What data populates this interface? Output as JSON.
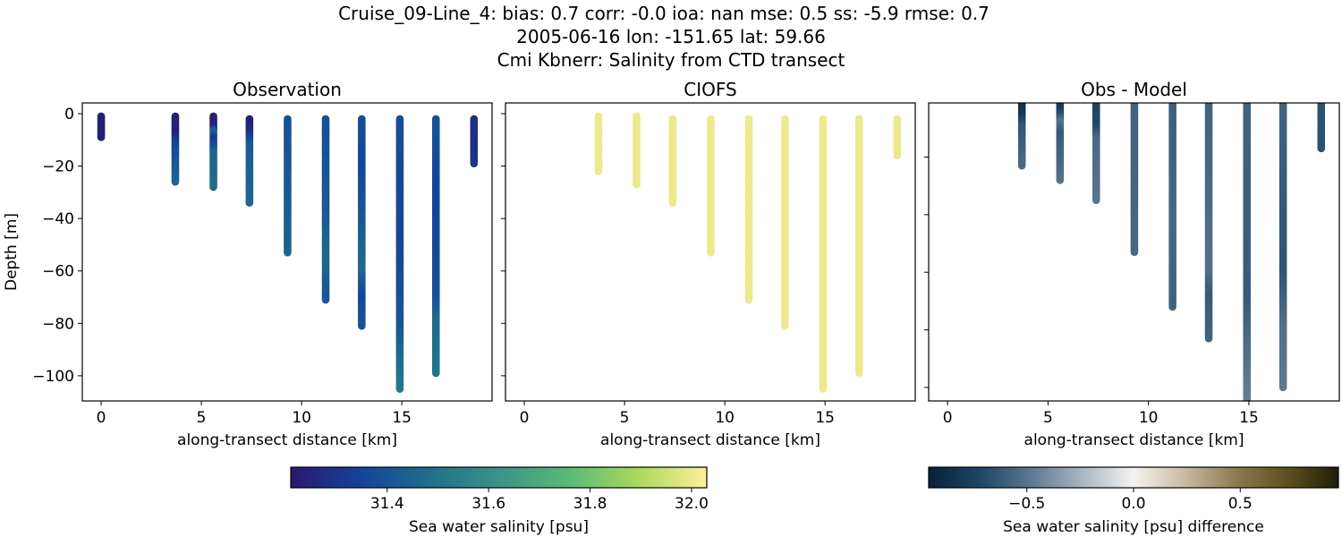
{
  "title_lines": [
    "Cruise_09-Line_4: bias: 0.7  corr: -0.0  ioa: nan  mse: 0.5  ss: -5.9  rmse: 0.7",
    "2005-06-16 lon: -151.65 lat: 59.66",
    "Cmi Kbnerr: Salinity from CTD transect"
  ],
  "chart_data": [
    {
      "type": "scatter",
      "title": "Observation",
      "xlabel": "along-transect distance [km]",
      "ylabel": "Depth [m]",
      "xlim": [
        -0.94,
        19.5
      ],
      "ylim": [
        -109.6,
        4.1
      ],
      "xticks": [
        0,
        5,
        10,
        15
      ],
      "yticks": [
        0,
        -20,
        -40,
        -60,
        -80,
        -100
      ],
      "colorbar": "salinity",
      "profiles": [
        {
          "x": 0,
          "points": [
            [
              -1,
              31.24
            ],
            [
              -9,
              31.24
            ]
          ]
        },
        {
          "x": 3.7,
          "points": [
            [
              -1,
              31.24
            ],
            [
              -8,
              31.24
            ],
            [
              -10,
              31.3
            ],
            [
              -15,
              31.38
            ],
            [
              -26,
              31.45
            ]
          ]
        },
        {
          "x": 5.6,
          "points": [
            [
              -1,
              31.24
            ],
            [
              -5,
              31.24
            ],
            [
              -7,
              31.45
            ],
            [
              -10,
              31.3
            ],
            [
              -15,
              31.45
            ],
            [
              -28,
              31.47
            ]
          ]
        },
        {
          "x": 7.4,
          "points": [
            [
              -2,
              31.24
            ],
            [
              -5,
              31.24
            ],
            [
              -8,
              31.3
            ],
            [
              -12,
              31.42
            ],
            [
              -34,
              31.46
            ]
          ]
        },
        {
          "x": 9.3,
          "points": [
            [
              -2,
              31.38
            ],
            [
              -30,
              31.42
            ],
            [
              -53,
              31.45
            ]
          ]
        },
        {
          "x": 11.2,
          "points": [
            [
              -2,
              31.38
            ],
            [
              -40,
              31.42
            ],
            [
              -55,
              31.47
            ],
            [
              -71,
              31.4
            ]
          ]
        },
        {
          "x": 13.0,
          "points": [
            [
              -2,
              31.38
            ],
            [
              -20,
              31.35
            ],
            [
              -60,
              31.47
            ],
            [
              -70,
              31.35
            ],
            [
              -81,
              31.4
            ]
          ]
        },
        {
          "x": 14.9,
          "points": [
            [
              -2,
              31.38
            ],
            [
              -50,
              31.36
            ],
            [
              -80,
              31.4
            ],
            [
              -95,
              31.48
            ],
            [
              -105,
              31.52
            ]
          ]
        },
        {
          "x": 16.7,
          "points": [
            [
              -2,
              31.4
            ],
            [
              -30,
              31.35
            ],
            [
              -70,
              31.38
            ],
            [
              -80,
              31.47
            ],
            [
              -99,
              31.5
            ]
          ]
        },
        {
          "x": 18.6,
          "points": [
            [
              -2,
              31.28
            ],
            [
              -19,
              31.3
            ]
          ]
        }
      ]
    },
    {
      "type": "scatter",
      "title": "CIOFS",
      "xlabel": "along-transect distance [km]",
      "xlim": [
        -0.94,
        19.5
      ],
      "ylim": [
        -109.6,
        4.1
      ],
      "xticks": [
        0,
        5,
        10,
        15
      ],
      "yticks": [
        0,
        -20,
        -40,
        -60,
        -80,
        -100
      ],
      "colorbar": "salinity",
      "profiles": [
        {
          "x": 3.7,
          "points": [
            [
              -1,
              32.0
            ],
            [
              -22,
              32.0
            ]
          ]
        },
        {
          "x": 5.6,
          "points": [
            [
              -1,
              32.0
            ],
            [
              -27,
              32.0
            ]
          ]
        },
        {
          "x": 7.4,
          "points": [
            [
              -2,
              32.0
            ],
            [
              -34,
              32.0
            ]
          ]
        },
        {
          "x": 9.3,
          "points": [
            [
              -2,
              32.0
            ],
            [
              -53,
              32.0
            ]
          ]
        },
        {
          "x": 11.2,
          "points": [
            [
              -2,
              32.0
            ],
            [
              -71,
              32.0
            ]
          ]
        },
        {
          "x": 13.0,
          "points": [
            [
              -2,
              32.0
            ],
            [
              -81,
              32.0
            ]
          ]
        },
        {
          "x": 14.9,
          "points": [
            [
              -2,
              32.0
            ],
            [
              -105,
              32.0
            ]
          ]
        },
        {
          "x": 16.7,
          "points": [
            [
              -2,
              32.0
            ],
            [
              -99,
              32.0
            ]
          ]
        },
        {
          "x": 18.6,
          "points": [
            [
              -2,
              32.0
            ],
            [
              -16,
              32.0
            ]
          ]
        }
      ]
    },
    {
      "type": "scatter",
      "title": "Obs - Model",
      "xlabel": "along-transect distance [km]",
      "xlim": [
        -0.94,
        19.5
      ],
      "ylim": [
        -104.7,
        -1.2
      ],
      "xticks": [
        0,
        5,
        10,
        15
      ],
      "yticks": [
        -20,
        -40,
        -60,
        -80,
        -100
      ],
      "colorbar": "difference",
      "profiles": [
        {
          "x": 3.7,
          "points": [
            [
              -1,
              -0.88
            ],
            [
              -6,
              -0.8
            ],
            [
              -9,
              -0.65
            ],
            [
              -23,
              -0.55
            ]
          ]
        },
        {
          "x": 5.6,
          "points": [
            [
              -1,
              -0.85
            ],
            [
              -5,
              -0.7
            ],
            [
              -8,
              -0.5
            ],
            [
              -12,
              -0.62
            ],
            [
              -28,
              -0.52
            ]
          ]
        },
        {
          "x": 7.4,
          "points": [
            [
              -1,
              -0.75
            ],
            [
              -10,
              -0.7
            ],
            [
              -14,
              -0.55
            ],
            [
              -35,
              -0.5
            ]
          ]
        },
        {
          "x": 9.3,
          "points": [
            [
              -1,
              -0.58
            ],
            [
              -53,
              -0.56
            ]
          ]
        },
        {
          "x": 11.2,
          "points": [
            [
              -1,
              -0.6
            ],
            [
              -40,
              -0.56
            ],
            [
              -72,
              -0.58
            ]
          ]
        },
        {
          "x": 13.0,
          "points": [
            [
              -1,
              -0.58
            ],
            [
              -60,
              -0.52
            ],
            [
              -68,
              -0.62
            ],
            [
              -83,
              -0.58
            ]
          ]
        },
        {
          "x": 14.9,
          "points": [
            [
              -1,
              -0.58
            ],
            [
              -70,
              -0.62
            ],
            [
              -90,
              -0.52
            ],
            [
              -106,
              -0.45
            ]
          ]
        },
        {
          "x": 16.7,
          "points": [
            [
              -1,
              -0.58
            ],
            [
              -60,
              -0.65
            ],
            [
              -80,
              -0.52
            ],
            [
              -100,
              -0.48
            ]
          ]
        },
        {
          "x": 18.6,
          "points": [
            [
              -1,
              -0.66
            ],
            [
              -17,
              -0.66
            ]
          ]
        }
      ]
    }
  ],
  "colorbars": {
    "salinity": {
      "label": "Sea water salinity [psu]",
      "range": [
        31.21,
        32.03
      ],
      "ticks": [
        "31.4",
        "31.6",
        "31.8",
        "32.0"
      ],
      "tick_values": [
        31.4,
        31.6,
        31.8,
        32.0
      ],
      "colors": [
        "#2a186c",
        "#14439c",
        "#206e8b",
        "#3c9387",
        "#5ab978",
        "#aad85c",
        "#fdef9a"
      ]
    },
    "difference": {
      "label": "Sea water salinity [psu] difference",
      "range": [
        -0.96,
        0.96
      ],
      "ticks": [
        "−0.5",
        "0.0",
        "0.5"
      ],
      "tick_values": [
        -0.5,
        0.0,
        0.5
      ],
      "colors": [
        "#08213a",
        "#1c4667",
        "#5d7890",
        "#a8b6c1",
        "#f4f2f0",
        "#c9bba2",
        "#8c7a4f",
        "#5e5021",
        "#1f1e0a"
      ]
    }
  }
}
